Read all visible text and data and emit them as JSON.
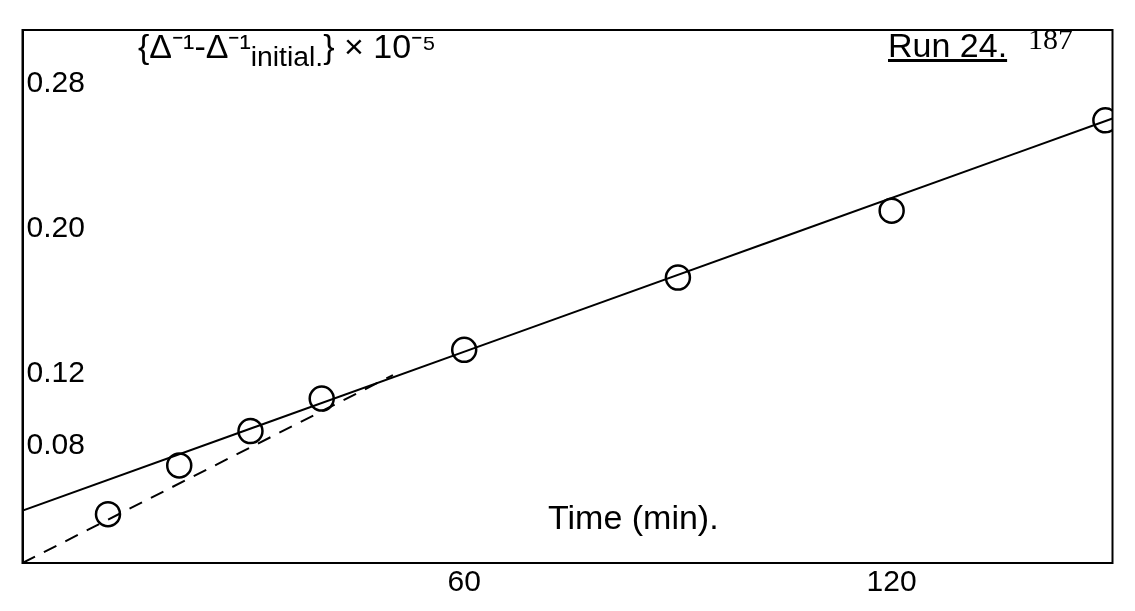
{
  "chart_data": {
    "type": "scatter",
    "title": "Run 24.",
    "ylabel": "{Δ⁻¹-Δ⁻¹$_{initial.}$} × 10⁻⁵",
    "xlabel": "Time (min).",
    "annotations": [
      "187"
    ],
    "x": [
      10,
      20,
      30,
      40,
      60,
      90,
      120,
      150
    ],
    "series": [
      {
        "color": "#000000",
        "marker": "circle",
        "values": [
          0.042,
          0.069,
          0.088,
          0.106,
          0.133,
          0.173,
          0.21,
          0.26
        ]
      },
      {
        "type": "line",
        "color": "#000000",
        "marker": "none",
        "line_style": "solid",
        "x": [
          -2,
          151
        ],
        "values": [
          0.044,
          0.261
        ]
      },
      {
        "type": "line",
        "color": "#000000",
        "marker": "none",
        "line_style": "dashed",
        "x": [
          -2,
          50
        ],
        "values": [
          0.015,
          0.119
        ]
      }
    ],
    "xlim": [
      -2,
      151
    ],
    "xticks": [
      60,
      120
    ],
    "ylim": [
      0.015,
      0.31
    ],
    "yticks": [
      0.08,
      0.12,
      {
        "value": 0.2,
        "label": "0.20"
      },
      0.28
    ],
    "grid": false,
    "legend": false
  }
}
